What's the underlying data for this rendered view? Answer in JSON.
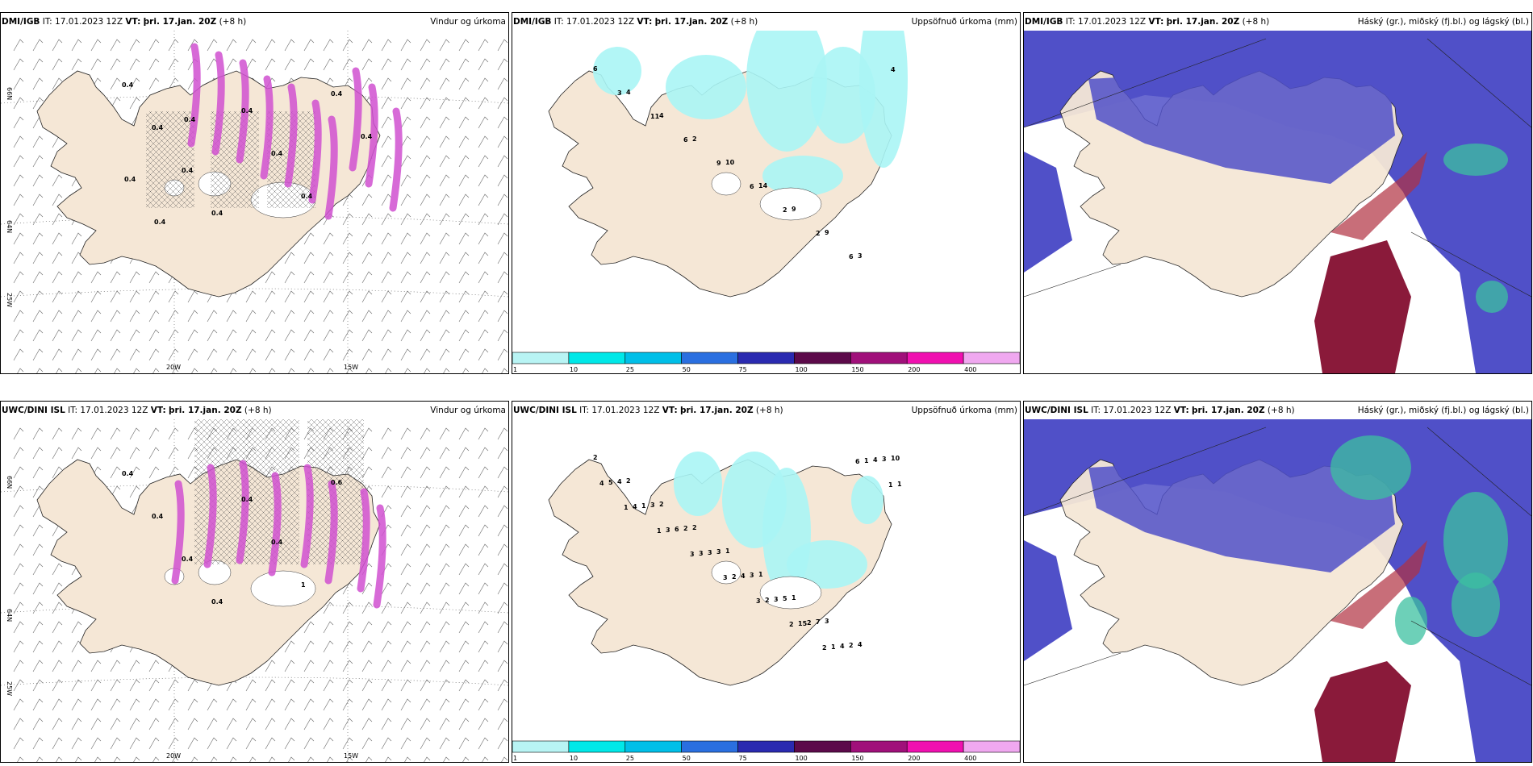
{
  "panels": [
    {
      "model": "DMI/IGB",
      "it": "17.01.2023 12Z",
      "vt": "þri. 17.jan. 20Z",
      "lead": "(+8 h)",
      "title": "Vindur og úrkoma"
    },
    {
      "model": "DMI/IGB",
      "it": "17.01.2023 12Z",
      "vt": "þri. 17.jan. 20Z",
      "lead": "(+8 h)",
      "title": "Uppsöfnuð úrkoma (mm)"
    },
    {
      "model": "DMI/IGB",
      "it": "17.01.2023 12Z",
      "vt": "þri. 17.jan. 20Z",
      "lead": "(+8 h)",
      "title": "Háský (gr.), miðský (fj.bl.) og lágský (bl.)"
    },
    {
      "model": "UWC/DINI ISL",
      "it": "17.01.2023 12Z",
      "vt": "þri. 17.jan. 20Z",
      "lead": "(+8 h)",
      "title": "Vindur og úrkoma"
    },
    {
      "model": "UWC/DINI ISL",
      "it": "17.01.2023 12Z",
      "vt": "þri. 17.jan. 20Z",
      "lead": "(+8 h)",
      "title": "Uppsöfnuð úrkoma (mm)"
    },
    {
      "model": "UWC/DINI ISL",
      "it": "17.01.2023 12Z",
      "vt": "þri. 17.jan. 20Z",
      "lead": "(+8 h)",
      "title": "Háský (gr.), miðský (fj.bl.) og lágský (bl.)"
    }
  ],
  "labels": {
    "it": "IT:",
    "vt": "VT:"
  },
  "axes": {
    "lon": [
      "20W",
      "15W"
    ],
    "lat": [
      "66N",
      "64N",
      "25W"
    ]
  },
  "colorbar": {
    "ticks": [
      "1",
      "10",
      "25",
      "50",
      "75",
      "100",
      "150",
      "200",
      "400"
    ],
    "colors": [
      "#b8f4f4",
      "#00e8e8",
      "#00bfe8",
      "#2a6fe0",
      "#2a2ab0",
      "#5c0a4a",
      "#a0107a",
      "#f010b0",
      "#f0a8f0"
    ]
  },
  "precip_top": [
    "6",
    "4",
    "4",
    "2",
    "10",
    "14",
    "9",
    "9",
    "3",
    "4",
    "3",
    "11",
    "6",
    "9",
    "6",
    "2",
    "2",
    "6"
  ],
  "precip_bottom": [
    "2",
    "2",
    "2",
    "2",
    "1",
    "1",
    "1",
    "3",
    "4",
    "10",
    "4",
    "3",
    "2",
    "3",
    "3",
    "5",
    "7",
    "2",
    "3",
    "5",
    "1",
    "6",
    "3",
    "4",
    "3",
    "2",
    "4",
    "4",
    "4",
    "4",
    "3",
    "3",
    "2",
    "2",
    "15",
    "1",
    "1",
    "1",
    "1",
    "1",
    "3",
    "3",
    "3",
    "2",
    "2",
    "6",
    "1"
  ],
  "wind_labels_top": [
    "0.4",
    "0.4",
    "0.4",
    "0.4",
    "0.4",
    "0.4",
    "0.4",
    "0.4",
    "0.4",
    "0.4",
    "0.4",
    "0.4"
  ],
  "wind_labels_bottom": [
    "0.4",
    "0.4",
    "0.4",
    "0.4",
    "0.4",
    "0.4",
    "1",
    "0.6"
  ],
  "colors": {
    "land": "#f5e7d6",
    "sea_white": "#ffffff",
    "precip_light": "#aaf5f5",
    "cloud_low": "#5050c8",
    "cloud_mid": "#3cc0a0",
    "cloud_high": "#8a1a3a",
    "precip_magenta": "#d050d0"
  }
}
